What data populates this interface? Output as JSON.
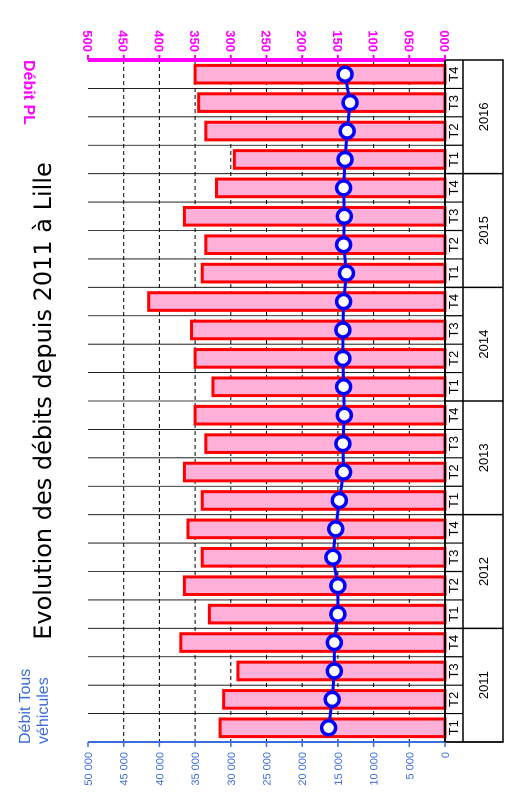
{
  "chart_data": {
    "type": "bar",
    "title": "Evolution des débits depuis 2011 à Lille",
    "ylabel_left": "Débit Tous véhicules",
    "ylabel_right": "Débit PL",
    "left_ticks": [
      "0",
      "5 000",
      "10 000",
      "15 000",
      "20 000",
      "25 000",
      "30 000",
      "35 000",
      "40 000",
      "45 000",
      "50 000"
    ],
    "right_ticks": [
      "000",
      "050",
      "100",
      "150",
      "200",
      "250",
      "300",
      "350",
      "400",
      "450",
      "500"
    ],
    "left_range": [
      0,
      50000
    ],
    "right_range": [
      0,
      500
    ],
    "years": [
      "2011",
      "2012",
      "2013",
      "2014",
      "2015",
      "2016"
    ],
    "quarters": [
      "T1",
      "T2",
      "T3",
      "T4"
    ],
    "series": [
      {
        "name": "Débit Tous véhicules",
        "kind": "bar",
        "color": "#ff0000",
        "fill": "#ffb0d8",
        "values": [
          31500,
          31000,
          29000,
          37000,
          33000,
          36500,
          34000,
          36000,
          34000,
          36500,
          33500,
          35000,
          32500,
          35000,
          35500,
          41500,
          34000,
          33500,
          36500,
          32000,
          29500,
          33500,
          34500,
          35000
        ]
      },
      {
        "name": "Débit PL",
        "kind": "line",
        "color": "#0000ff",
        "values": [
          163,
          158,
          155,
          155,
          150,
          150,
          157,
          153,
          148,
          142,
          143,
          141,
          142,
          143,
          143,
          142,
          138,
          142,
          141,
          142,
          140,
          137,
          133,
          140
        ]
      }
    ],
    "grid": true
  }
}
